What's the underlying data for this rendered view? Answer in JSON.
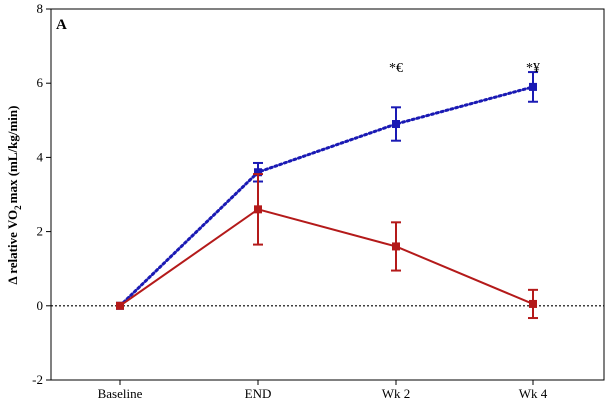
{
  "chart_data": {
    "type": "line",
    "panel_label": "A",
    "ylabel": {
      "pre": "Δ relative VO",
      "sub": "2",
      "post": "max (mL/kg/min)"
    },
    "categories": [
      "Baseline",
      "END",
      "Wk 2",
      "Wk 4"
    ],
    "ylim": [
      -2,
      8
    ],
    "yticks": [
      -2,
      0,
      2,
      4,
      6,
      8
    ],
    "reference_line": 0,
    "series": [
      {
        "color": "#1a1ab4",
        "style": "dotted",
        "values": [
          0,
          3.6,
          4.9,
          5.9
        ],
        "err": [
          0,
          0.25,
          0.45,
          0.4
        ]
      },
      {
        "color": "#b41a1a",
        "style": "solid",
        "values": [
          0,
          2.6,
          1.6,
          0.05
        ],
        "err": [
          0,
          0.95,
          0.65,
          0.38
        ]
      }
    ],
    "annotations": [
      {
        "category": "Wk 2",
        "text": "*€",
        "y": 6.3
      },
      {
        "category": "Wk 4",
        "text": "*¥",
        "y": 6.3
      }
    ]
  }
}
